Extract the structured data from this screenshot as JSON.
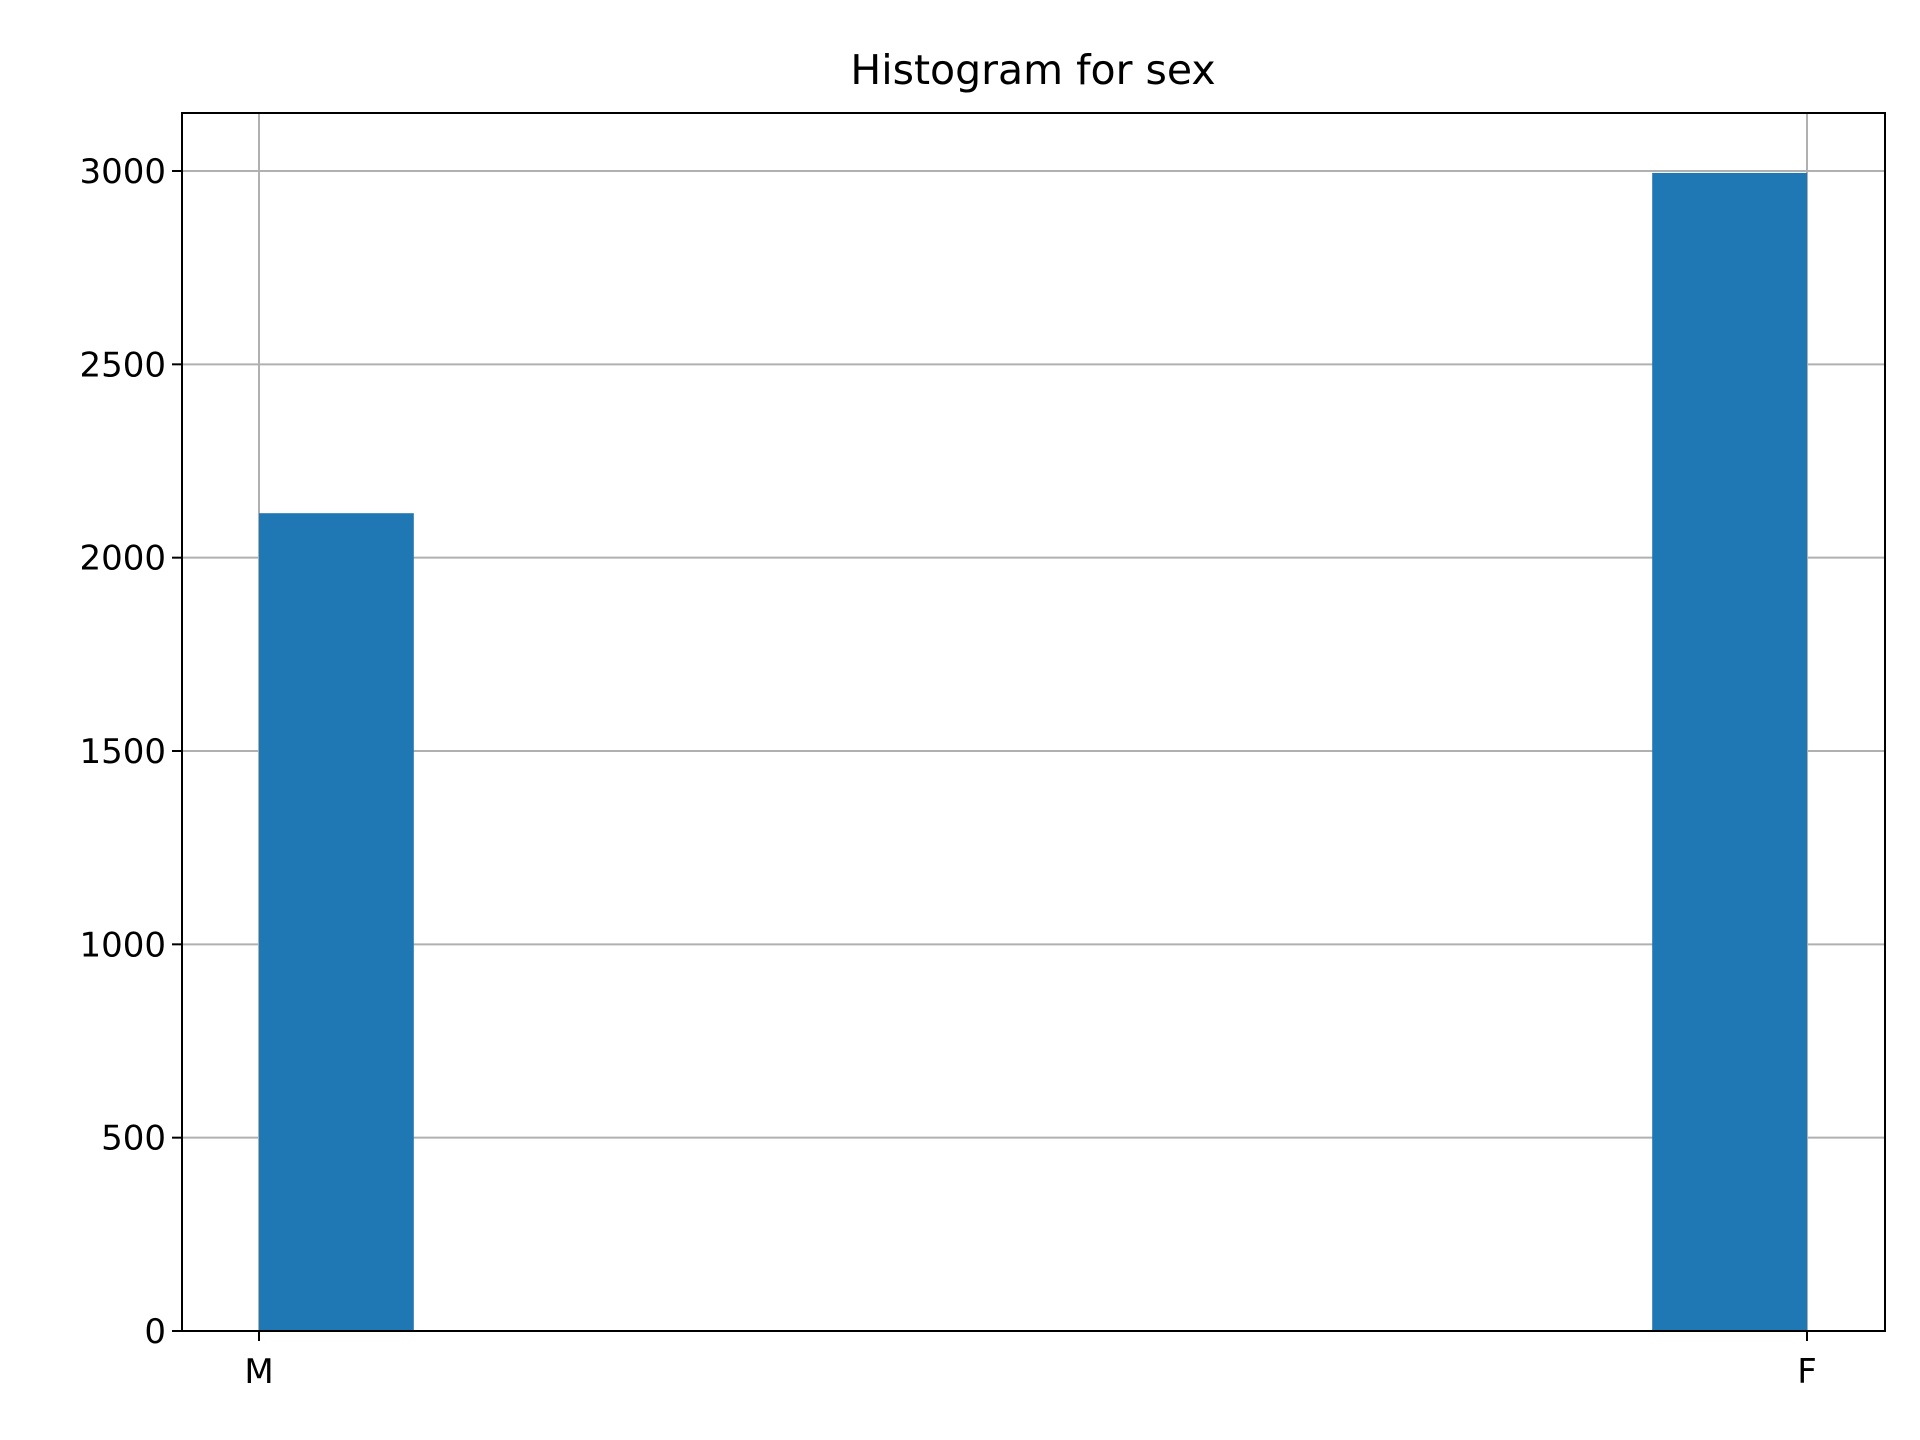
{
  "chart_data": {
    "type": "bar",
    "title": "Histogram for sex",
    "xlabel": "",
    "ylabel": "",
    "categories": [
      "M",
      "F"
    ],
    "values": [
      2115,
      2995
    ],
    "x_ticks": [
      "M",
      "F"
    ],
    "y_ticks": [
      "0",
      "500",
      "1000",
      "1500",
      "2000",
      "2500",
      "3000"
    ],
    "ylim": [
      0,
      3150
    ],
    "grid": true,
    "legend": "none",
    "bar_color": "#1f77b4"
  }
}
